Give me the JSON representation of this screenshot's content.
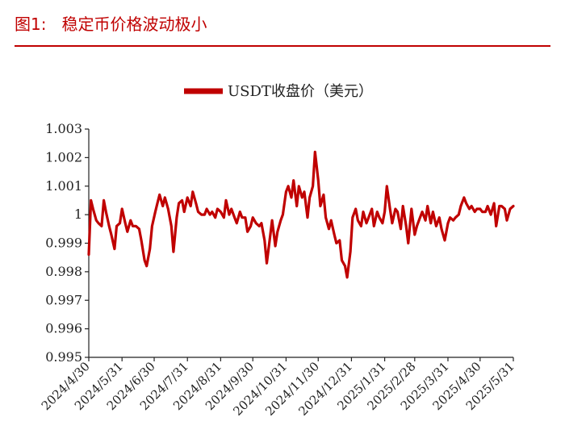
{
  "figure": {
    "label": "图1:",
    "caption": "稳定币价格波动极小"
  },
  "colors": {
    "accent": "#c00000",
    "series": "#c00000",
    "axis": "#222222"
  },
  "chart_data": {
    "type": "line",
    "title": "",
    "xlabel": "",
    "ylabel": "",
    "legend": {
      "position": "top",
      "entries": [
        "USDT收盘价（美元）"
      ]
    },
    "grid": false,
    "ylim": [
      0.995,
      1.003
    ],
    "y_ticks": [
      "1.003",
      "1.002",
      "1.001",
      "1",
      "0.999",
      "0.998",
      "0.997",
      "0.996",
      "0.995"
    ],
    "x_ticks": [
      "2024/4/30",
      "2024/5/31",
      "2024/6/30",
      "2024/7/31",
      "2024/8/31",
      "2024/9/30",
      "2024/10/31",
      "2024/11/30",
      "2024/12/31",
      "2025/1/31",
      "2025/2/28",
      "2025/3/31",
      "2025/4/30",
      "2025/5/31"
    ],
    "series": [
      {
        "name": "USDT收盘价（美元）",
        "color": "#c00000",
        "points": [
          [
            "2024/4/30",
            0.9986
          ],
          [
            "2024/5/2",
            1.0005
          ],
          [
            "2024/5/4",
            1.0002
          ],
          [
            "2024/5/7",
            0.9998
          ],
          [
            "2024/5/9",
            0.9997
          ],
          [
            "2024/5/12",
            0.9996
          ],
          [
            "2024/5/14",
            1.0005
          ],
          [
            "2024/5/16",
            1.0001
          ],
          [
            "2024/5/19",
            0.9996
          ],
          [
            "2024/5/21",
            0.9993
          ],
          [
            "2024/5/24",
            0.9988
          ],
          [
            "2024/5/26",
            0.9996
          ],
          [
            "2024/5/29",
            0.9997
          ],
          [
            "2024/5/31",
            1.0002
          ],
          [
            "2024/6/3",
            0.9997
          ],
          [
            "2024/6/5",
            0.9994
          ],
          [
            "2024/6/8",
            0.9998
          ],
          [
            "2024/6/10",
            0.9996
          ],
          [
            "2024/6/13",
            0.9996
          ],
          [
            "2024/6/16",
            0.9995
          ],
          [
            "2024/6/18",
            0.9991
          ],
          [
            "2024/6/21",
            0.9984
          ],
          [
            "2024/6/23",
            0.9982
          ],
          [
            "2024/6/26",
            0.9988
          ],
          [
            "2024/6/28",
            0.9996
          ],
          [
            "2024/7/1",
            1.0001
          ],
          [
            "2024/7/3",
            1.0004
          ],
          [
            "2024/7/5",
            1.0007
          ],
          [
            "2024/7/8",
            1.0003
          ],
          [
            "2024/7/10",
            1.0006
          ],
          [
            "2024/7/13",
            1.0002
          ],
          [
            "2024/7/16",
            0.9996
          ],
          [
            "2024/7/18",
            0.9987
          ],
          [
            "2024/7/21",
            0.9999
          ],
          [
            "2024/7/23",
            1.0004
          ],
          [
            "2024/7/26",
            1.0005
          ],
          [
            "2024/7/28",
            1.0001
          ],
          [
            "2024/7/31",
            1.0006
          ],
          [
            "2024/8/3",
            1.0003
          ],
          [
            "2024/8/5",
            1.0008
          ],
          [
            "2024/8/8",
            1.0004
          ],
          [
            "2024/8/10",
            1.0001
          ],
          [
            "2024/8/13",
            1.0
          ],
          [
            "2024/8/16",
            1.0
          ],
          [
            "2024/8/18",
            1.0002
          ],
          [
            "2024/8/21",
            1.0
          ],
          [
            "2024/8/23",
            1.0001
          ],
          [
            "2024/8/26",
            0.9999
          ],
          [
            "2024/8/28",
            1.0002
          ],
          [
            "2024/8/31",
            1.0001
          ],
          [
            "2024/9/3",
            0.9999
          ],
          [
            "2024/9/5",
            1.0005
          ],
          [
            "2024/9/8",
            1.0
          ],
          [
            "2024/9/10",
            1.0002
          ],
          [
            "2024/9/13",
            0.9999
          ],
          [
            "2024/9/15",
            0.9997
          ],
          [
            "2024/9/18",
            1.0001
          ],
          [
            "2024/9/20",
            0.9999
          ],
          [
            "2024/9/23",
            0.9999
          ],
          [
            "2024/9/25",
            0.9994
          ],
          [
            "2024/9/28",
            0.9996
          ],
          [
            "2024/9/30",
            0.9999
          ],
          [
            "2024/10/3",
            0.9997
          ],
          [
            "2024/10/6",
            0.9996
          ],
          [
            "2024/10/8",
            0.9997
          ],
          [
            "2024/10/11",
            0.9991
          ],
          [
            "2024/10/13",
            0.9983
          ],
          [
            "2024/10/16",
            0.9992
          ],
          [
            "2024/10/18",
            0.9998
          ],
          [
            "2024/10/21",
            0.9989
          ],
          [
            "2024/10/23",
            0.9994
          ],
          [
            "2024/10/26",
            0.9998
          ],
          [
            "2024/10/28",
            1.0
          ],
          [
            "2024/10/31",
            1.0008
          ],
          [
            "2024/11/2",
            1.001
          ],
          [
            "2024/11/5",
            1.0006
          ],
          [
            "2024/11/7",
            1.0012
          ],
          [
            "2024/11/10",
            1.0003
          ],
          [
            "2024/11/12",
            1.001
          ],
          [
            "2024/11/15",
            1.0006
          ],
          [
            "2024/11/17",
            1.0008
          ],
          [
            "2024/11/20",
            0.9999
          ],
          [
            "2024/11/22",
            1.0006
          ],
          [
            "2024/11/25",
            1.001
          ],
          [
            "2024/11/27",
            1.0022
          ],
          [
            "2024/11/30",
            1.0012
          ],
          [
            "2024/12/2",
            1.0003
          ],
          [
            "2024/12/5",
            1.0007
          ],
          [
            "2024/12/7",
            0.9999
          ],
          [
            "2024/12/10",
            0.9995
          ],
          [
            "2024/12/12",
            0.9998
          ],
          [
            "2024/12/15",
            0.9993
          ],
          [
            "2024/12/17",
            0.999
          ],
          [
            "2024/12/20",
            0.9991
          ],
          [
            "2024/12/22",
            0.9984
          ],
          [
            "2024/12/25",
            0.9982
          ],
          [
            "2024/12/27",
            0.9978
          ],
          [
            "2024/12/30",
            0.9987
          ],
          [
            "2025/1/1",
            0.9999
          ],
          [
            "2025/1/4",
            1.0002
          ],
          [
            "2025/1/6",
            0.9998
          ],
          [
            "2025/1/9",
            0.9996
          ],
          [
            "2025/1/11",
            1.0001
          ],
          [
            "2025/1/14",
            0.9997
          ],
          [
            "2025/1/16",
            0.9999
          ],
          [
            "2025/1/19",
            1.0002
          ],
          [
            "2025/1/21",
            0.9996
          ],
          [
            "2025/1/24",
            1.0001
          ],
          [
            "2025/1/26",
            0.9999
          ],
          [
            "2025/1/29",
            0.9997
          ],
          [
            "2025/1/31",
            1.0001
          ],
          [
            "2025/2/2",
            1.001
          ],
          [
            "2025/2/5",
            1.0002
          ],
          [
            "2025/2/7",
            0.9997
          ],
          [
            "2025/2/10",
            1.0002
          ],
          [
            "2025/2/12",
            1.0001
          ],
          [
            "2025/2/15",
            0.9995
          ],
          [
            "2025/2/17",
            1.0003
          ],
          [
            "2025/2/20",
            0.9996
          ],
          [
            "2025/2/22",
            0.999
          ],
          [
            "2025/2/25",
            1.0002
          ],
          [
            "2025/2/28",
            0.9993
          ],
          [
            "2025/3/2",
            0.9996
          ],
          [
            "2025/3/5",
            0.9999
          ],
          [
            "2025/3/7",
            1.0001
          ],
          [
            "2025/3/10",
            0.9998
          ],
          [
            "2025/3/12",
            1.0003
          ],
          [
            "2025/3/15",
            0.9997
          ],
          [
            "2025/3/17",
            1.0001
          ],
          [
            "2025/3/20",
            0.9996
          ],
          [
            "2025/3/23",
            0.9999
          ],
          [
            "2025/3/25",
            0.9995
          ],
          [
            "2025/3/28",
            0.9991
          ],
          [
            "2025/3/31",
            0.9997
          ],
          [
            "2025/4/2",
            0.9999
          ],
          [
            "2025/4/5",
            0.9998
          ],
          [
            "2025/4/7",
            0.9999
          ],
          [
            "2025/4/10",
            1.0
          ],
          [
            "2025/4/12",
            1.0003
          ],
          [
            "2025/4/15",
            1.0006
          ],
          [
            "2025/4/17",
            1.0004
          ],
          [
            "2025/4/20",
            1.0002
          ],
          [
            "2025/4/22",
            1.0003
          ],
          [
            "2025/4/25",
            1.0001
          ],
          [
            "2025/4/27",
            1.0002
          ],
          [
            "2025/4/30",
            1.0002
          ],
          [
            "2025/5/2",
            1.0001
          ],
          [
            "2025/5/5",
            1.0001
          ],
          [
            "2025/5/7",
            1.0003
          ],
          [
            "2025/5/10",
            1.0
          ],
          [
            "2025/5/13",
            1.0004
          ],
          [
            "2025/5/15",
            0.9996
          ],
          [
            "2025/5/18",
            1.0003
          ],
          [
            "2025/5/20",
            1.0003
          ],
          [
            "2025/5/23",
            1.0002
          ],
          [
            "2025/5/25",
            0.9998
          ],
          [
            "2025/5/28",
            1.0002
          ],
          [
            "2025/5/31",
            1.0003
          ]
        ]
      }
    ]
  }
}
